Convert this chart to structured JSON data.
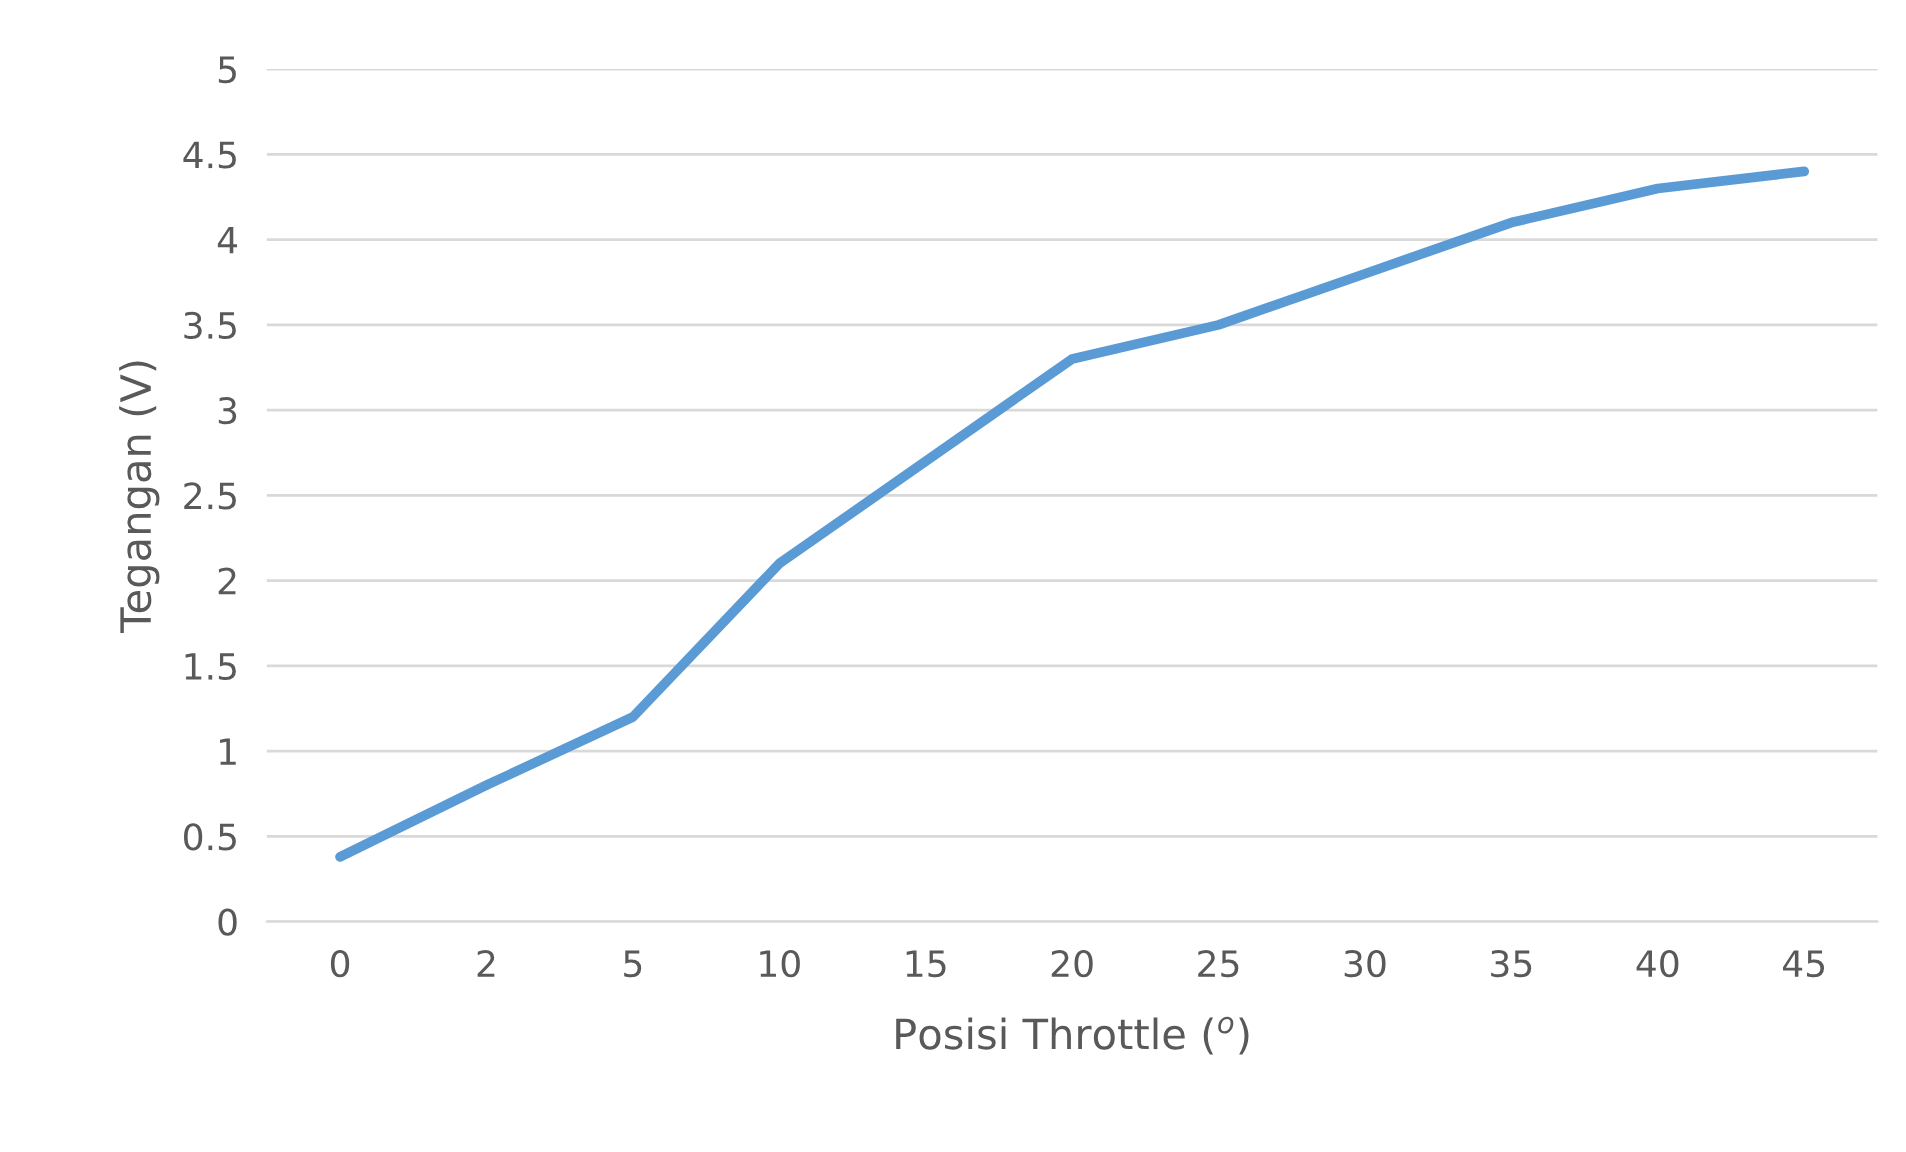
{
  "chart_data": {
    "type": "line",
    "xlabel": "Posisi Throttle ($^{o}$)",
    "ylabel": "Tegangan (V)",
    "categories": [
      "0",
      "2",
      "5",
      "10",
      "15",
      "20",
      "25",
      "30",
      "35",
      "40",
      "45"
    ],
    "series": [
      {
        "color": "#5b9bd5",
        "values": [
          0.38,
          0.8,
          1.2,
          2.1,
          2.7,
          3.3,
          3.5,
          3.8,
          4.1,
          4.3,
          4.4
        ]
      }
    ],
    "ylim": [
      0,
      5
    ],
    "yticks": [
      0,
      0.5,
      1,
      1.5,
      2,
      2.5,
      3,
      3.5,
      4,
      4.5,
      5
    ],
    "grid": "y",
    "legend": false
  }
}
